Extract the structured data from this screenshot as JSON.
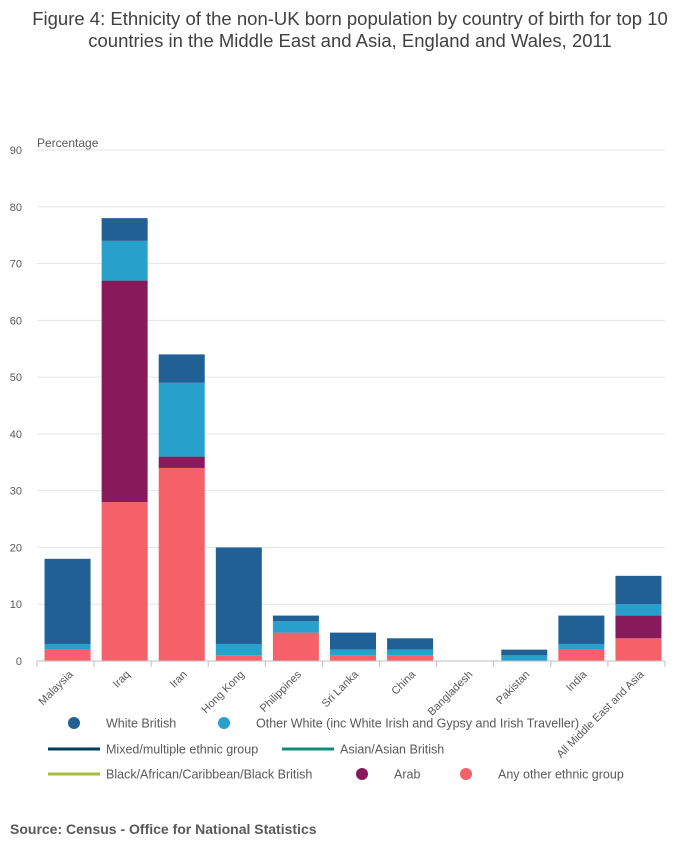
{
  "title": "Figure 4: Ethnicity of the non-UK born population by country of birth for top 10 countries in the Middle East and Asia, England and Wales, 2011",
  "source": "Source: Census - Office for National Statistics",
  "colors": {
    "white_british": "#206095",
    "other_white": "#27a0cc",
    "mixed": "#003c57",
    "asian": "#118c7b",
    "black": "#a8bd3a",
    "arab": "#871a5b",
    "other": "#f66068",
    "grid": "#e6e6e6",
    "axis": "#bfbfbf"
  },
  "chart_data": {
    "type": "bar",
    "stacked": true,
    "ylabel": "Percentage",
    "ylim": [
      0,
      90
    ],
    "yticks": [
      0,
      10,
      20,
      30,
      40,
      50,
      60,
      70,
      80,
      90
    ],
    "grid": true,
    "legend_position": "bottom",
    "categories": [
      "Malaysia",
      "Iraq",
      "Iran",
      "Hong Kong",
      "Philippines",
      "Sri Lanka",
      "China",
      "Bangladesh",
      "Pakistan",
      "India",
      "All Middle East and Asia"
    ],
    "series": [
      {
        "name": "Any other ethnic group",
        "color_key": "other",
        "values": [
          2,
          28,
          34,
          1,
          5,
          1,
          1,
          0,
          0,
          2,
          4
        ]
      },
      {
        "name": "Arab",
        "color_key": "arab",
        "values": [
          0,
          39,
          2,
          0,
          0,
          0,
          0,
          0,
          0,
          0,
          4
        ]
      },
      {
        "name": "Black/African/Caribbean/Black British",
        "color_key": "black",
        "values": [
          0,
          0,
          0,
          0,
          0,
          0,
          0,
          0,
          0,
          0,
          0
        ]
      },
      {
        "name": "Asian/Asian British",
        "color_key": "asian",
        "values": [
          0,
          0,
          0,
          0,
          0,
          0,
          0,
          0,
          0,
          0,
          0
        ]
      },
      {
        "name": "Mixed/multiple ethnic group",
        "color_key": "mixed",
        "values": [
          0,
          0,
          0,
          0,
          0,
          0,
          0,
          0,
          0,
          0,
          0
        ]
      },
      {
        "name": "Other White (inc White Irish and Gypsy and Irish Traveller)",
        "color_key": "other_white",
        "values": [
          1,
          7,
          13,
          2,
          2,
          1,
          1,
          0,
          1,
          1,
          2
        ]
      },
      {
        "name": "White British",
        "color_key": "white_british",
        "values": [
          15,
          4,
          5,
          17,
          1,
          3,
          2,
          0,
          1,
          5,
          5
        ]
      }
    ],
    "legend": [
      {
        "name": "White British",
        "color_key": "white_british",
        "marker": "circle"
      },
      {
        "name": "Other White (inc White Irish and Gypsy and Irish Traveller)",
        "color_key": "other_white",
        "marker": "circle"
      },
      {
        "name": "Mixed/multiple ethnic group",
        "color_key": "mixed",
        "marker": "line"
      },
      {
        "name": "Asian/Asian British",
        "color_key": "asian",
        "marker": "line"
      },
      {
        "name": "Black/African/Caribbean/Black British",
        "color_key": "black",
        "marker": "line"
      },
      {
        "name": "Arab",
        "color_key": "arab",
        "marker": "circle"
      },
      {
        "name": "Any other ethnic group",
        "color_key": "other",
        "marker": "circle"
      }
    ]
  }
}
